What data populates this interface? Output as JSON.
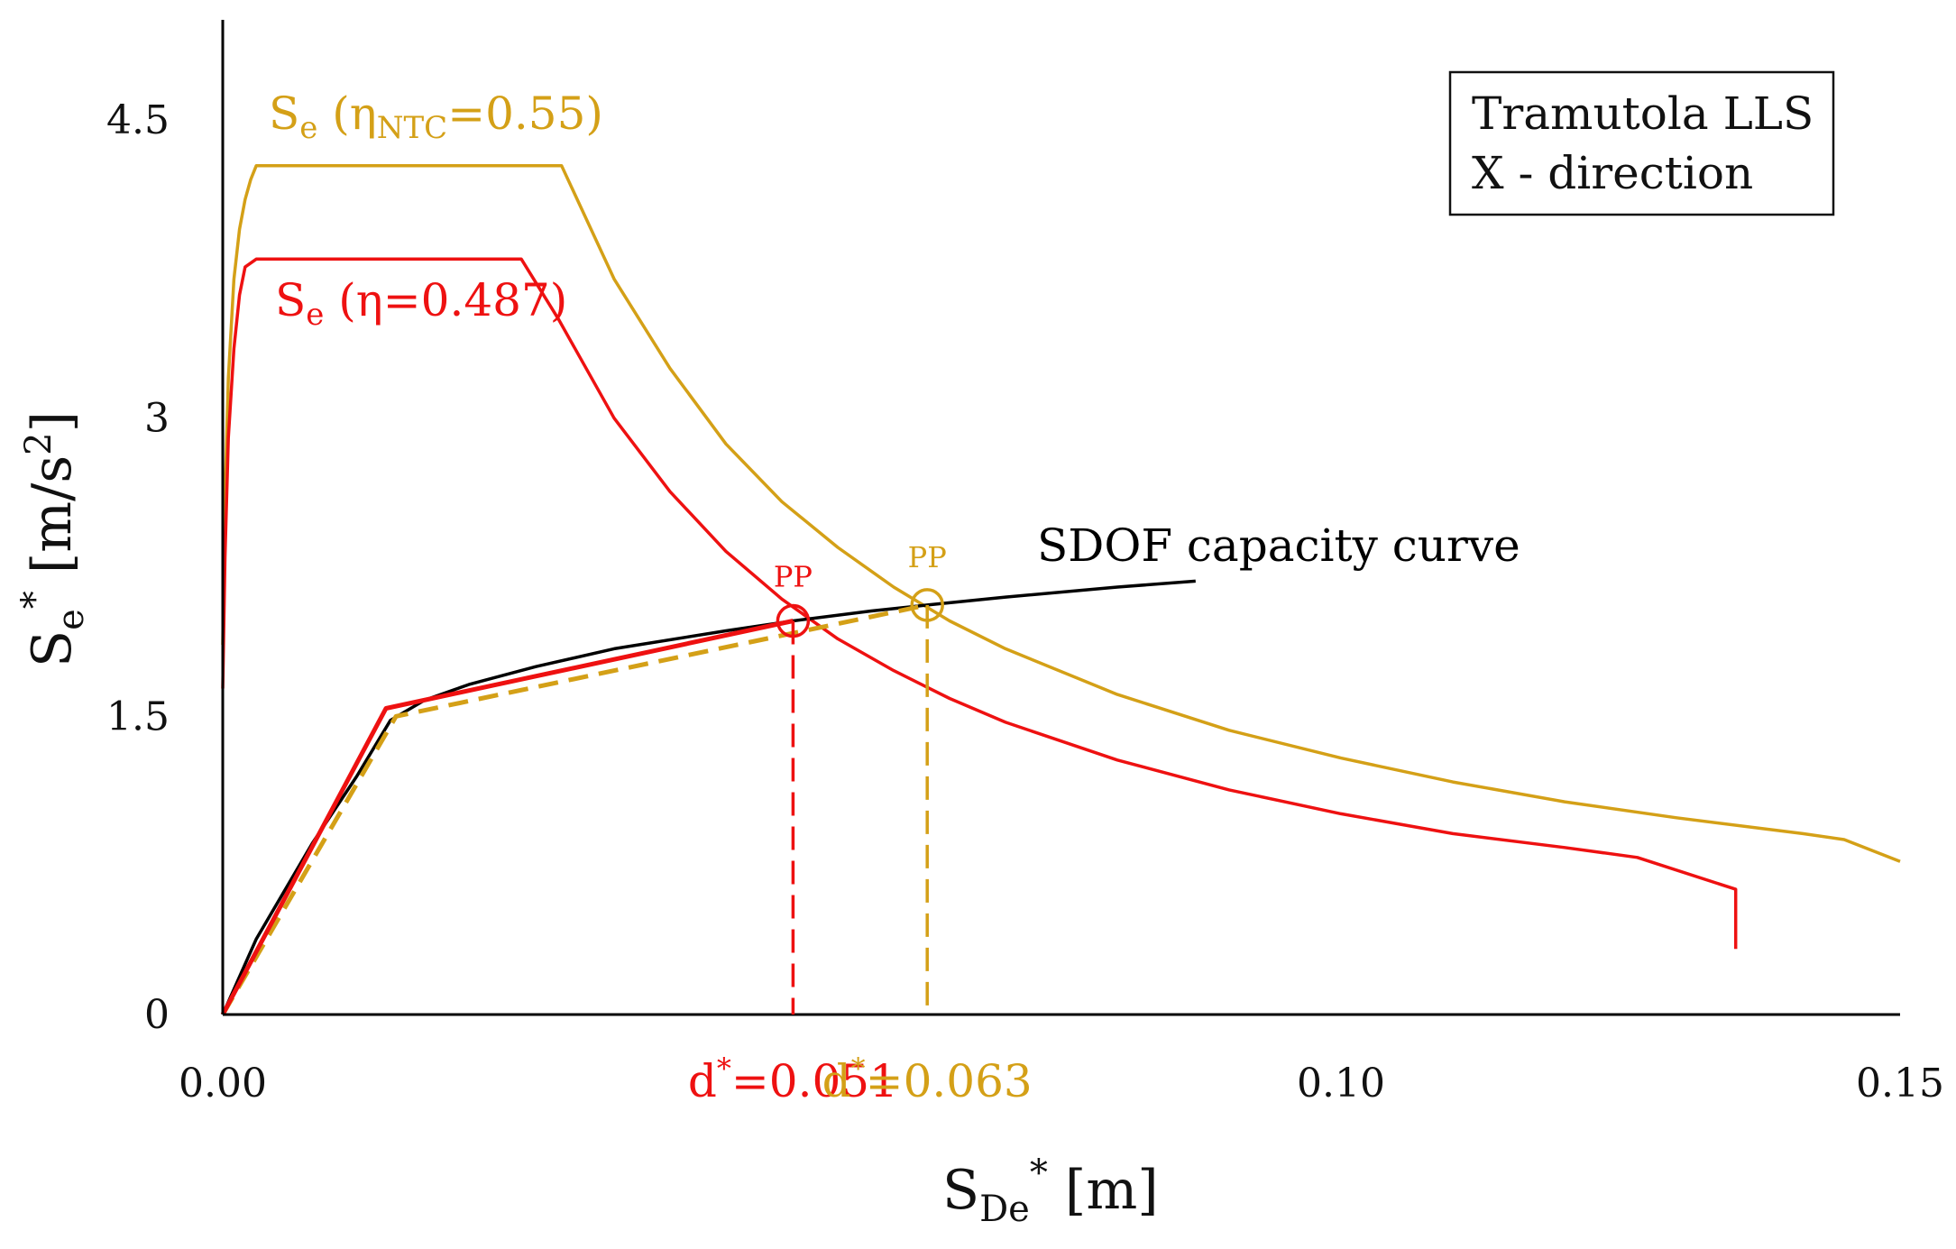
{
  "chart_data": {
    "type": "line",
    "title": "",
    "xlabel": {
      "main": "S",
      "sub": "De",
      "sup": "*",
      "unit": " [m]"
    },
    "ylabel": {
      "main": "S",
      "sub": "e",
      "sup": "*",
      "unit_pre": " [m/s",
      "unit_sup": "2",
      "unit_post": "]"
    },
    "xlim": [
      0,
      0.15
    ],
    "ylim": [
      0,
      5.0
    ],
    "x_ticks": [
      {
        "value": 0.0,
        "label": "0.00"
      },
      {
        "value": 0.1,
        "label": "0.10"
      },
      {
        "value": 0.15,
        "label": "0.15"
      }
    ],
    "y_ticks": [
      {
        "value": 0,
        "label": "0"
      },
      {
        "value": 1.5,
        "label": "1.5"
      },
      {
        "value": 3,
        "label": "3"
      },
      {
        "value": 4.5,
        "label": "4.5"
      }
    ],
    "legend_box": {
      "line1": "Tramutola LLS",
      "line2": "X - direction",
      "position": "top-right"
    },
    "colors": {
      "ntc": "#D4A017",
      "eta": "#EE1111",
      "capacity": "#000000"
    },
    "series": [
      {
        "name": "Se (ηNTC=0.55)",
        "label": {
          "main": "S",
          "sub": "e",
          "open": " (η",
          "eta_sub": "NTC",
          "rest": "=0.55)"
        },
        "color": "#D4A017",
        "style": "solid",
        "points": [
          [
            0.0,
            1.86
          ],
          [
            0.0002,
            2.6
          ],
          [
            0.0005,
            3.2
          ],
          [
            0.001,
            3.7
          ],
          [
            0.0015,
            3.95
          ],
          [
            0.002,
            4.1
          ],
          [
            0.0025,
            4.2
          ],
          [
            0.003,
            4.27
          ],
          [
            0.0303,
            4.27
          ],
          [
            0.035,
            3.7
          ],
          [
            0.04,
            3.25
          ],
          [
            0.045,
            2.87
          ],
          [
            0.05,
            2.58
          ],
          [
            0.055,
            2.35
          ],
          [
            0.06,
            2.15
          ],
          [
            0.065,
            1.98
          ],
          [
            0.07,
            1.84
          ],
          [
            0.08,
            1.61
          ],
          [
            0.09,
            1.43
          ],
          [
            0.1,
            1.29
          ],
          [
            0.11,
            1.17
          ],
          [
            0.12,
            1.07
          ],
          [
            0.13,
            0.99
          ],
          [
            0.1413,
            0.91
          ],
          [
            0.145,
            0.88
          ],
          [
            0.15,
            0.77
          ]
        ]
      },
      {
        "name": "Se (η=0.487)",
        "label": {
          "main": "S",
          "sub": "e",
          "open": " (η",
          "eta_sub": "",
          "rest": "=0.487)"
        },
        "color": "#EE1111",
        "style": "solid",
        "points": [
          [
            0.0,
            1.64
          ],
          [
            0.0002,
            2.3
          ],
          [
            0.0005,
            2.9
          ],
          [
            0.001,
            3.35
          ],
          [
            0.0015,
            3.62
          ],
          [
            0.002,
            3.76
          ],
          [
            0.003,
            3.8
          ],
          [
            0.0267,
            3.8
          ],
          [
            0.03,
            3.5
          ],
          [
            0.035,
            3.0
          ],
          [
            0.04,
            2.63
          ],
          [
            0.045,
            2.33
          ],
          [
            0.05,
            2.09
          ],
          [
            0.055,
            1.89
          ],
          [
            0.06,
            1.73
          ],
          [
            0.065,
            1.59
          ],
          [
            0.07,
            1.47
          ],
          [
            0.08,
            1.28
          ],
          [
            0.09,
            1.13
          ],
          [
            0.1,
            1.01
          ],
          [
            0.11,
            0.91
          ],
          [
            0.12,
            0.84
          ],
          [
            0.1265,
            0.79
          ],
          [
            0.1353,
            0.63
          ],
          [
            0.1353,
            0.33
          ]
        ]
      },
      {
        "name": "SDOF capacity curve",
        "color": "#000000",
        "style": "solid",
        "points": [
          [
            0.0,
            0.0
          ],
          [
            0.003,
            0.38
          ],
          [
            0.008,
            0.86
          ],
          [
            0.012,
            1.2
          ],
          [
            0.015,
            1.48
          ],
          [
            0.018,
            1.58
          ],
          [
            0.022,
            1.66
          ],
          [
            0.028,
            1.75
          ],
          [
            0.035,
            1.84
          ],
          [
            0.045,
            1.93
          ],
          [
            0.051,
            1.98
          ],
          [
            0.058,
            2.03
          ],
          [
            0.063,
            2.06
          ],
          [
            0.07,
            2.1
          ],
          [
            0.08,
            2.15
          ],
          [
            0.087,
            2.18
          ]
        ]
      },
      {
        "name": "bilinear (η=0.487)",
        "color": "#EE1111",
        "style": "solid",
        "points": [
          [
            0.0,
            0.0
          ],
          [
            0.0146,
            1.54
          ],
          [
            0.051,
            1.98
          ]
        ]
      },
      {
        "name": "bilinear (ηNTC=0.55)",
        "color": "#D4A017",
        "style": "dashed",
        "points": [
          [
            0.0,
            0.0
          ],
          [
            0.0155,
            1.5
          ],
          [
            0.063,
            2.06
          ]
        ]
      }
    ],
    "performance_points": [
      {
        "x": 0.051,
        "y": 1.98,
        "label": "PP",
        "d_label": "d",
        "d_sup": "*",
        "d_value": "=0.051",
        "color": "#EE1111"
      },
      {
        "x": 0.063,
        "y": 2.06,
        "label": "PP",
        "d_label": "d",
        "d_sup": "*",
        "d_value": "=0.063",
        "color": "#D4A017"
      }
    ],
    "annotations": [
      {
        "text": "SDOF capacity curve",
        "color": "#000000"
      }
    ]
  }
}
